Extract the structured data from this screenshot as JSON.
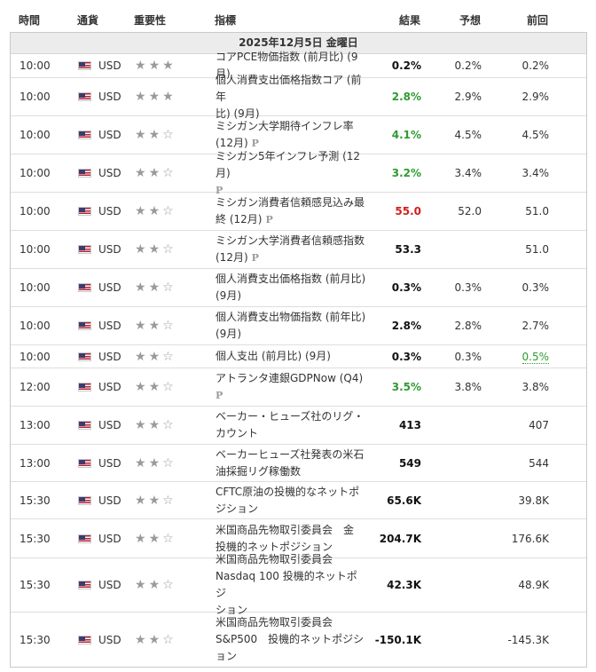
{
  "header": {
    "time": "時間",
    "currency": "通貨",
    "importance": "重要性",
    "indicator": "指標",
    "result": "結果",
    "forecast": "予想",
    "previous": "前回"
  },
  "date_label": "2025年12月5日 金曜日",
  "colors": {
    "result_green": "#2e9b2e",
    "result_red": "#d11f1f",
    "date_row_bg": "#ececec",
    "border": "#c9c9c9"
  },
  "rows": [
    {
      "time": "10:00",
      "currency": "USD",
      "stars": 3,
      "line1": "コアPCE物価指数 (前月比) (9月)",
      "line2": "",
      "prelim": false,
      "result": "0.2%",
      "result_color": "black",
      "forecast": "0.2%",
      "previous": "0.2%",
      "prev_color": "normal"
    },
    {
      "time": "10:00",
      "currency": "USD",
      "stars": 3,
      "line1": "個人消費支出価格指数コア (前年",
      "line2": "比) (9月)",
      "prelim": false,
      "result": "2.8%",
      "result_color": "green",
      "forecast": "2.9%",
      "previous": "2.9%",
      "prev_color": "normal"
    },
    {
      "time": "10:00",
      "currency": "USD",
      "stars": 2,
      "line1": "ミシガン大学期待インフレ率",
      "line2": "(12月)",
      "prelim": true,
      "result": "4.1%",
      "result_color": "green",
      "forecast": "4.5%",
      "previous": "4.5%",
      "prev_color": "normal"
    },
    {
      "time": "10:00",
      "currency": "USD",
      "stars": 2,
      "line1": "ミシガン5年インフレ予測 (12月)",
      "line2": "",
      "prelim": true,
      "result": "3.2%",
      "result_color": "green",
      "forecast": "3.4%",
      "previous": "3.4%",
      "prev_color": "normal"
    },
    {
      "time": "10:00",
      "currency": "USD",
      "stars": 2,
      "line1": "ミシガン消費者信頼感見込み最",
      "line2": "終 (12月)",
      "prelim": true,
      "result": "55.0",
      "result_color": "red",
      "forecast": "52.0",
      "previous": "51.0",
      "prev_color": "normal"
    },
    {
      "time": "10:00",
      "currency": "USD",
      "stars": 2,
      "line1": "ミシガン大学消費者信頼感指数",
      "line2": "(12月)",
      "prelim": true,
      "result": "53.3",
      "result_color": "black",
      "forecast": "",
      "previous": "51.0",
      "prev_color": "normal"
    },
    {
      "time": "10:00",
      "currency": "USD",
      "stars": 2,
      "line1": "個人消費支出価格指数 (前月比)",
      "line2": "(9月)",
      "prelim": false,
      "result": "0.3%",
      "result_color": "black",
      "forecast": "0.3%",
      "previous": "0.3%",
      "prev_color": "normal"
    },
    {
      "time": "10:00",
      "currency": "USD",
      "stars": 2,
      "line1": "個人消費支出物価指数 (前年比)",
      "line2": "(9月)",
      "prelim": false,
      "result": "2.8%",
      "result_color": "black",
      "forecast": "2.8%",
      "previous": "2.7%",
      "prev_color": "normal"
    },
    {
      "time": "10:00",
      "currency": "USD",
      "stars": 2,
      "line1": "個人支出 (前月比) (9月)",
      "line2": "",
      "prelim": false,
      "result": "0.3%",
      "result_color": "black",
      "forecast": "0.3%",
      "previous": "0.5%",
      "prev_color": "green"
    },
    {
      "time": "12:00",
      "currency": "USD",
      "stars": 2,
      "line1": "アトランタ連銀GDPNow (Q4)",
      "line2": "",
      "prelim": true,
      "result": "3.5%",
      "result_color": "green",
      "forecast": "3.8%",
      "previous": "3.8%",
      "prev_color": "normal"
    },
    {
      "time": "13:00",
      "currency": "USD",
      "stars": 2,
      "line1": "ベーカー・ヒューズ社のリグ・",
      "line2": "カウント",
      "prelim": false,
      "result": "413",
      "result_color": "black",
      "forecast": "",
      "previous": "407",
      "prev_color": "normal"
    },
    {
      "time": "13:00",
      "currency": "USD",
      "stars": 2,
      "line1": "ベーカーヒューズ社発表の米石",
      "line2": "油採掘リグ稼働数",
      "prelim": false,
      "result": "549",
      "result_color": "black",
      "forecast": "",
      "previous": "544",
      "prev_color": "normal"
    },
    {
      "time": "15:30",
      "currency": "USD",
      "stars": 2,
      "line1": "CFTC原油の投機的なネットポ",
      "line2": "ジション",
      "prelim": false,
      "result": "65.6K",
      "result_color": "black",
      "forecast": "",
      "previous": "39.8K",
      "prev_color": "normal"
    },
    {
      "time": "15:30",
      "currency": "USD",
      "stars": 2,
      "line1": "米国商品先物取引委員会　金",
      "line2": "投機的ネットポジション",
      "prelim": false,
      "result": "204.7K",
      "result_color": "black",
      "forecast": "",
      "previous": "176.6K",
      "prev_color": "normal"
    },
    {
      "time": "15:30",
      "currency": "USD",
      "stars": 2,
      "line1": "米国商品先物取引委員会",
      "line2": "Nasdaq 100 投機的ネットポジ",
      "line3": "ション",
      "prelim": false,
      "result": "42.3K",
      "result_color": "black",
      "forecast": "",
      "previous": "48.9K",
      "prev_color": "normal"
    },
    {
      "time": "15:30",
      "currency": "USD",
      "stars": 2,
      "line1": "米国商品先物取引委員会",
      "line2": "S&P500　投機的ネットポジシ",
      "line3": "ョン",
      "prelim": false,
      "result": "-150.1K",
      "result_color": "black",
      "forecast": "",
      "previous": "-145.3K",
      "prev_color": "normal"
    }
  ]
}
